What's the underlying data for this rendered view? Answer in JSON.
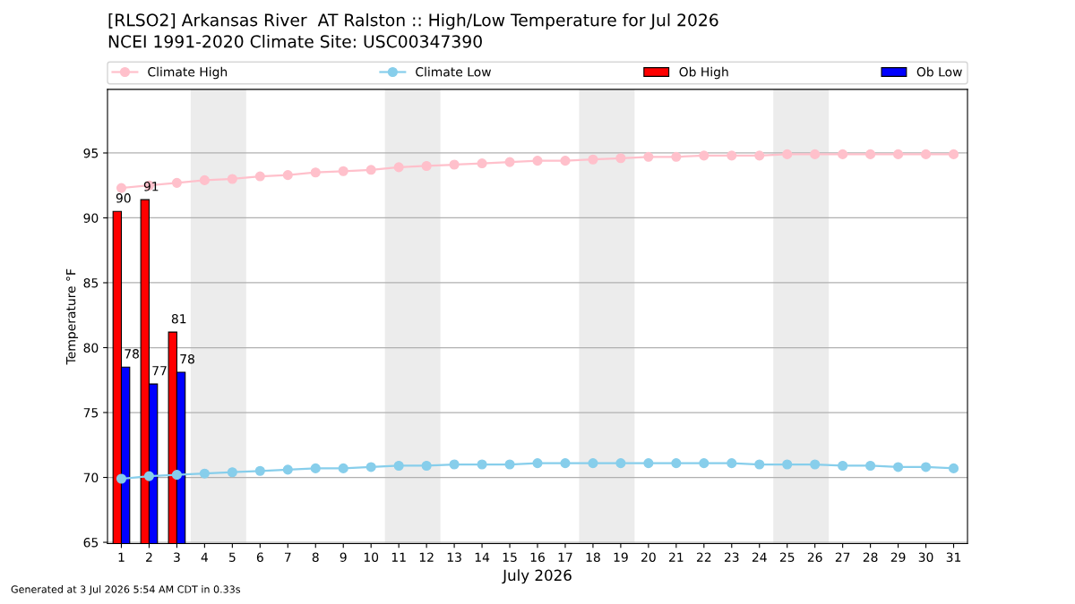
{
  "chart_data": {
    "type": "line",
    "title": "[RLSO2] Arkansas River  AT Ralston :: High/Low Temperature for Jul 2026",
    "subtitle": "NCEI 1991-2020 Climate Site: USC00347390",
    "xlabel": "July 2026",
    "ylabel": "Temperature °F",
    "annotations": [
      "Generated at 3 Jul 2026 5:54 AM CDT in 0.33s"
    ],
    "x": [
      1,
      2,
      3,
      4,
      5,
      6,
      7,
      8,
      9,
      10,
      11,
      12,
      13,
      14,
      15,
      16,
      17,
      18,
      19,
      20,
      21,
      22,
      23,
      24,
      25,
      26,
      27,
      28,
      29,
      30,
      31
    ],
    "series": [
      {
        "name": "Climate High",
        "color": "#ffc0cb",
        "values": [
          92.3,
          92.5,
          92.7,
          92.9,
          93.0,
          93.2,
          93.3,
          93.5,
          93.6,
          93.7,
          93.9,
          94.0,
          94.1,
          94.2,
          94.3,
          94.4,
          94.4,
          94.5,
          94.6,
          94.7,
          94.7,
          94.8,
          94.8,
          94.8,
          94.9,
          94.9,
          94.9,
          94.9,
          94.9,
          94.9,
          94.9
        ]
      },
      {
        "name": "Climate Low",
        "color": "#87ceeb",
        "values": [
          69.9,
          70.1,
          70.2,
          70.3,
          70.4,
          70.5,
          70.6,
          70.7,
          70.7,
          70.8,
          70.9,
          70.9,
          71.0,
          71.0,
          71.0,
          71.1,
          71.1,
          71.1,
          71.1,
          71.1,
          71.1,
          71.1,
          71.1,
          71.0,
          71.0,
          71.0,
          70.9,
          70.9,
          70.8,
          70.8,
          70.7
        ]
      },
      {
        "name": "Ob High",
        "type": "bar",
        "color": "#ff0000",
        "values": [
          90.5,
          91.4,
          81.2,
          null,
          null,
          null,
          null,
          null,
          null,
          null,
          null,
          null,
          null,
          null,
          null,
          null,
          null,
          null,
          null,
          null,
          null,
          null,
          null,
          null,
          null,
          null,
          null,
          null,
          null,
          null,
          null
        ],
        "value_labels": [
          "90",
          "91",
          "81",
          null,
          null,
          null,
          null,
          null,
          null,
          null,
          null,
          null,
          null,
          null,
          null,
          null,
          null,
          null,
          null,
          null,
          null,
          null,
          null,
          null,
          null,
          null,
          null,
          null,
          null,
          null,
          null
        ]
      },
      {
        "name": "Ob Low",
        "type": "bar",
        "color": "#0000ff",
        "values": [
          78.5,
          77.2,
          78.1,
          null,
          null,
          null,
          null,
          null,
          null,
          null,
          null,
          null,
          null,
          null,
          null,
          null,
          null,
          null,
          null,
          null,
          null,
          null,
          null,
          null,
          null,
          null,
          null,
          null,
          null,
          null,
          null
        ],
        "value_labels": [
          "78",
          "77",
          "78",
          null,
          null,
          null,
          null,
          null,
          null,
          null,
          null,
          null,
          null,
          null,
          null,
          null,
          null,
          null,
          null,
          null,
          null,
          null,
          null,
          null,
          null,
          null,
          null,
          null,
          null,
          null,
          null
        ]
      }
    ],
    "xlim": [
      0.5,
      31.5
    ],
    "xticks": [
      1,
      2,
      3,
      4,
      5,
      6,
      7,
      8,
      9,
      10,
      11,
      12,
      13,
      14,
      15,
      16,
      17,
      18,
      19,
      20,
      21,
      22,
      23,
      24,
      25,
      26,
      27,
      28,
      29,
      30,
      31
    ],
    "ylim": [
      64.9,
      99.9
    ],
    "yticks": [
      65,
      70,
      75,
      80,
      85,
      90,
      95
    ],
    "bands": [
      {
        "axis": "x",
        "from": 3.5,
        "to": 5.5,
        "color": "#ececec"
      },
      {
        "axis": "x",
        "from": 10.5,
        "to": 12.5,
        "color": "#ececec"
      },
      {
        "axis": "x",
        "from": 17.5,
        "to": 19.5,
        "color": "#ececec"
      },
      {
        "axis": "x",
        "from": 24.5,
        "to": 26.5,
        "color": "#ececec"
      }
    ],
    "grid": "y",
    "legend": "top",
    "marker": "circle",
    "line_style": "solid"
  }
}
